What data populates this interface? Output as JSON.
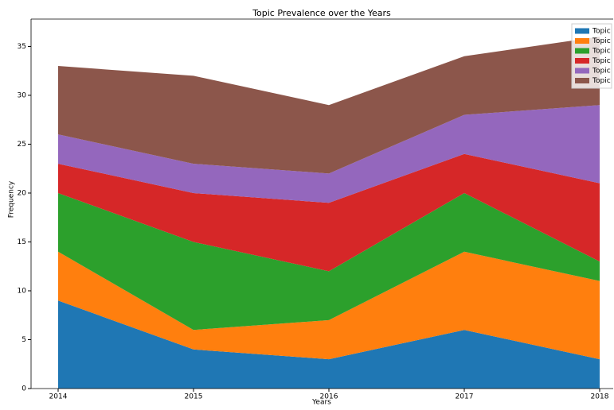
{
  "chart_data": {
    "type": "stackedarea",
    "title": "Topic Prevalence over the Years",
    "x_label": "Years",
    "y_label": "Frequency",
    "x": [
      2014,
      2015,
      2016,
      2017,
      2018
    ],
    "series": [
      {
        "name": "Topic",
        "color": "#1f77b4",
        "values": [
          9,
          4,
          3,
          6,
          3
        ]
      },
      {
        "name": "Topic",
        "color": "#ff7f0e",
        "values": [
          5,
          2,
          4,
          8,
          8
        ]
      },
      {
        "name": "Topic",
        "color": "#2ca02c",
        "values": [
          6,
          9,
          5,
          6,
          2
        ]
      },
      {
        "name": "Topic",
        "color": "#d62728",
        "values": [
          3,
          5,
          7,
          4,
          8
        ]
      },
      {
        "name": "Topic",
        "color": "#9467bd",
        "values": [
          3,
          3,
          3,
          4,
          8
        ]
      },
      {
        "name": "Topic",
        "color": "#8c564b",
        "values": [
          7,
          9,
          7,
          6,
          7
        ]
      }
    ],
    "xlim": [
      2013.8,
      2018.1
    ],
    "xticks": [
      2014,
      2015,
      2016,
      2017,
      2018
    ],
    "ylim": [
      0,
      37.8
    ],
    "yticks": [
      0,
      5,
      10,
      15,
      20,
      25,
      30,
      35
    ],
    "legend": "upper right"
  }
}
